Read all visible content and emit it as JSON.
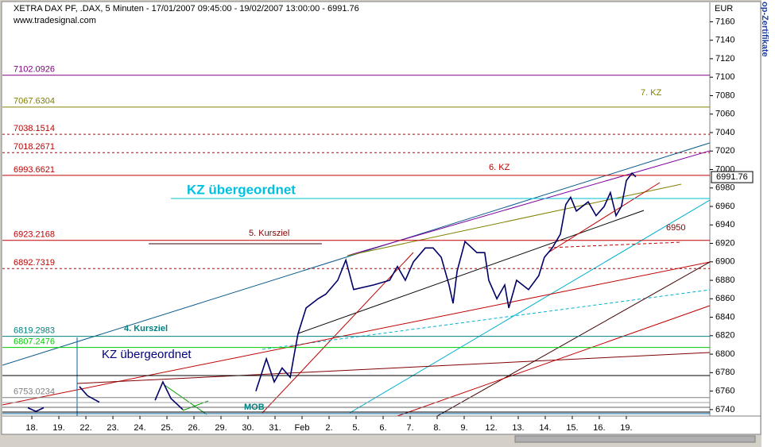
{
  "chart_data": {
    "type": "line",
    "title": "XETRA DAX PF, .DAX, 5 Minuten - 17/01/2007 09:45:00 - 19/02/2007 13:00:00 - 6991.76",
    "subtitle": "www.tradesignal.com",
    "y_unit": "EUR",
    "side_text": "op-Zertifikate",
    "last_price": 6991.76,
    "xlim": [
      -1.09,
      25.09
    ],
    "ylim": [
      6733,
      7181
    ],
    "xticks": [
      {
        "value": 0,
        "label": "18."
      },
      {
        "value": 1,
        "label": "19."
      },
      {
        "value": 2,
        "label": "22."
      },
      {
        "value": 3,
        "label": "23."
      },
      {
        "value": 4,
        "label": "24."
      },
      {
        "value": 5,
        "label": "25."
      },
      {
        "value": 6,
        "label": "26."
      },
      {
        "value": 7,
        "label": "29."
      },
      {
        "value": 8,
        "label": "30."
      },
      {
        "value": 9,
        "label": "31."
      },
      {
        "value": 10,
        "label": "Feb"
      },
      {
        "value": 11,
        "label": "2."
      },
      {
        "value": 12,
        "label": "5."
      },
      {
        "value": 13,
        "label": "6."
      },
      {
        "value": 14,
        "label": "7."
      },
      {
        "value": 15,
        "label": "8."
      },
      {
        "value": 16,
        "label": "9."
      },
      {
        "value": 17,
        "label": "12."
      },
      {
        "value": 18,
        "label": "13."
      },
      {
        "value": 19,
        "label": "14."
      },
      {
        "value": 20,
        "label": "15."
      },
      {
        "value": 21,
        "label": "16."
      },
      {
        "value": 22,
        "label": "19."
      }
    ],
    "yticks": [
      6740,
      6760,
      6780,
      6800,
      6820,
      6840,
      6860,
      6880,
      6900,
      6920,
      6940,
      6960,
      6980,
      7000,
      7020,
      7040,
      7060,
      7080,
      7100,
      7120,
      7140,
      7160
    ],
    "series": [
      {
        "name": ".DAX",
        "color": "#000066",
        "x": [
          -0.15,
          0.15,
          0.44,
          1.0,
          1.76,
          2.06,
          2.5,
          3.5,
          4.56,
          4.85,
          5.15,
          5.59,
          7.0,
          8.29,
          8.68,
          8.97,
          9.26,
          9.56,
          9.71,
          9.85,
          10.15,
          10.59,
          10.88,
          11.32,
          11.62,
          11.91,
          12.65,
          13.24,
          13.53,
          13.82,
          14.12,
          14.56,
          14.85,
          15.15,
          15.44,
          15.59,
          15.74,
          16.03,
          16.47,
          16.76,
          16.91,
          17.21,
          17.5,
          17.65,
          17.94,
          18.38,
          18.76,
          18.97,
          19.26,
          19.56,
          19.76,
          19.94,
          20.15,
          20.59,
          20.88,
          21.18,
          21.41,
          21.62,
          21.82,
          22,
          22.21,
          22.35
        ],
        "values": [
          6742,
          6738,
          6742,
          null,
          6765,
          6755,
          6748,
          null,
          6750,
          6770,
          6752,
          6740,
          null,
          6760,
          6795,
          6770,
          6785,
          6775,
          6800,
          6822,
          6850,
          6860,
          6865,
          6880,
          6902,
          6870,
          6875,
          6880,
          6895,
          6880,
          6900,
          6915,
          6915,
          6905,
          6875,
          6855,
          6890,
          6922,
          6910,
          6910,
          6880,
          6860,
          6875,
          6850,
          6880,
          6870,
          6885,
          6905,
          6915,
          6930,
          6962,
          6970,
          6955,
          6965,
          6950,
          6960,
          6975,
          6950,
          6960,
          6988,
          6996,
          6992
        ]
      }
    ],
    "levels": [
      {
        "value": 7102.0926,
        "color": "#800080",
        "dashed": false
      },
      {
        "value": 7067.6304,
        "color": "#808000",
        "dashed": false
      },
      {
        "value": 7038.1514,
        "color": "#c00000",
        "dashed": true
      },
      {
        "value": 7018.2671,
        "color": "#c00000",
        "dashed": true
      },
      {
        "value": 6993.6621,
        "color": "#c00000",
        "dashed": false
      },
      {
        "value": 6923.2168,
        "color": "#c00000",
        "dashed": false
      },
      {
        "value": 6892.7319,
        "color": "#c00000",
        "dashed": true
      },
      {
        "value": 6819.2983,
        "color": "#008080",
        "dashed": false
      },
      {
        "value": 6807.2476,
        "color": "#00cc00",
        "dashed": false
      },
      {
        "value": 6753.0234,
        "color": "#808080",
        "dashed": false
      }
    ],
    "annotations": [
      "KZ übergeordnet",
      "5. Kursziel",
      "6. KZ",
      "7. KZ",
      "6950",
      "4. Kursziel",
      "KZ übergeordnet",
      "MOB"
    ]
  }
}
